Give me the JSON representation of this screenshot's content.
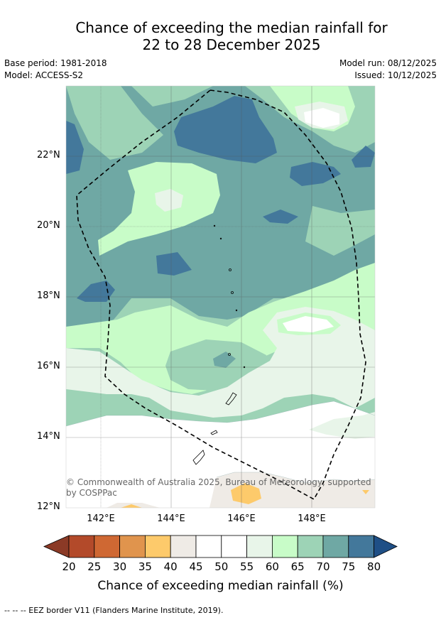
{
  "title": {
    "line1": "Chance of exceeding the median rainfall for",
    "line2": "22 to 28 December 2025"
  },
  "meta": {
    "base_period": "Base period: 1981-2018",
    "model": "Model: ACCESS-S2",
    "model_run": "Model run: 08/12/2025",
    "issued": "Issued: 10/12/2025"
  },
  "map": {
    "lat_labels": [
      "22°N",
      "20°N",
      "18°N",
      "16°N",
      "14°N",
      "12°N"
    ],
    "lon_labels": [
      "142°E",
      "144°E",
      "146°E",
      "148°E"
    ],
    "copyright_line1": "© Commonwealth of Australia 2025, Bureau of Meteorology, supported",
    "copyright_line2": "by COSPPac"
  },
  "legend": {
    "ticks": [
      "20",
      "25",
      "30",
      "35",
      "40",
      "45",
      "50",
      "55",
      "60",
      "65",
      "70",
      "75",
      "80"
    ],
    "colors": [
      "#8b3a26",
      "#b34a2a",
      "#cf6833",
      "#e0944d",
      "#fdca6b",
      "#efebe6",
      "#ffffff",
      "#ffffff",
      "#e8f5e9",
      "#c8fcc8",
      "#9dd3b6",
      "#6fa8a4",
      "#43789b",
      "#1f4f86"
    ],
    "label": "Chance of exceeding median rainfall (%)"
  },
  "footnote": "--  --  -- EEZ border V11 (Flanders Marine Institute, 2019)."
}
